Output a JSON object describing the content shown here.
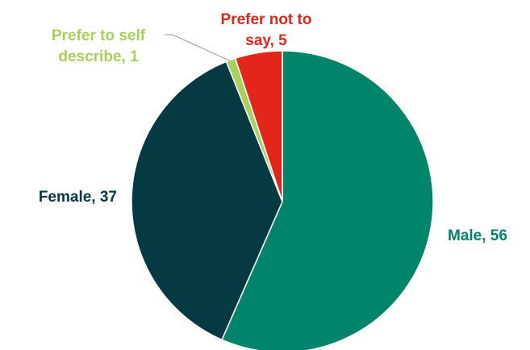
{
  "chart_data": {
    "type": "pie",
    "title": "",
    "series": [
      {
        "values": [
          56,
          37,
          1,
          5
        ],
        "categories": [
          "Male",
          "Female",
          "Prefer to self describe",
          "Prefer not to say"
        ]
      }
    ],
    "slices": [
      {
        "category": "Male",
        "value": 56,
        "color": "#00856A",
        "label_lines": [
          "Male, 56"
        ]
      },
      {
        "category": "Female",
        "value": 37,
        "color": "#053A42",
        "label_lines": [
          "Female, 37"
        ]
      },
      {
        "category": "Prefer to self describe",
        "value": 1,
        "color": "#A8D05A",
        "label_lines": [
          "Prefer to self",
          "describe, 1"
        ]
      },
      {
        "category": "Prefer not to say",
        "value": 5,
        "color": "#E3261C",
        "label_lines": [
          "Prefer not to",
          "say, 5"
        ]
      }
    ],
    "start_angle": "12 o'clock",
    "direction": "clockwise",
    "legend": "none",
    "data_labels": "category and value outside slices"
  }
}
